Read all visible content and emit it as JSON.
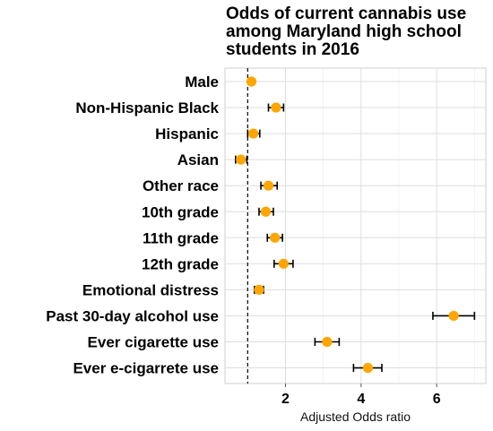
{
  "chart_data": {
    "type": "forest-plot",
    "title": "Odds of current cannabis use\namong Maryland high school\nstudents in 2016",
    "xlabel": "Adjusted Odds ratio",
    "ylabel": "",
    "xlim": [
      0.4,
      7.3
    ],
    "x_ticks": [
      2,
      4,
      6
    ],
    "reference_line": 1,
    "grid": true,
    "marker_color": "#FFA500",
    "categories": [
      "Male",
      "Non-Hispanic Black",
      "Hispanic",
      "Asian",
      "Other race",
      "10th grade",
      "11th grade",
      "12th grade",
      "Emotional distress",
      "Past 30-day alcohol use",
      "Ever cigarette use",
      "Ever e-cigarrete use"
    ],
    "odds_ratio": [
      1.1,
      1.75,
      1.15,
      0.82,
      1.55,
      1.48,
      1.72,
      1.95,
      1.3,
      6.45,
      3.1,
      4.18
    ],
    "ci_lower": [
      1.1,
      1.55,
      1.0,
      0.68,
      1.35,
      1.3,
      1.52,
      1.7,
      1.18,
      5.9,
      2.78,
      3.8
    ],
    "ci_upper": [
      1.1,
      1.95,
      1.32,
      0.98,
      1.78,
      1.68,
      1.92,
      2.2,
      1.42,
      7.0,
      3.42,
      4.55
    ]
  }
}
